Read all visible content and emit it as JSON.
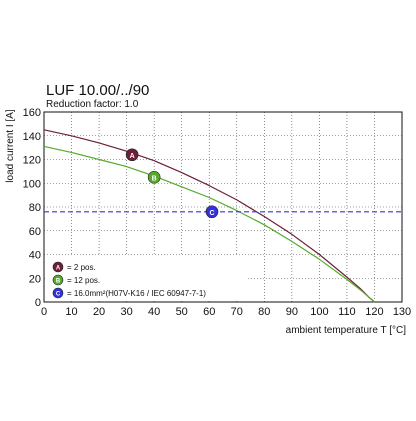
{
  "chart_data": {
    "type": "line",
    "title": "LUF 10.00/../90",
    "subtitle": "Reduction factor: 1.0",
    "xlabel": "ambient temperature T [°C]",
    "ylabel": "load current I [A]",
    "xlim": [
      0,
      130
    ],
    "ylim": [
      0,
      160
    ],
    "xticks": [
      "0",
      "10",
      "20",
      "30",
      "40",
      "50",
      "60",
      "70",
      "80",
      "90",
      "100",
      "110",
      "120",
      "130"
    ],
    "yticks": [
      "0",
      "20",
      "40",
      "60",
      "80",
      "100",
      "120",
      "140",
      "160"
    ],
    "grid": true,
    "series": [
      {
        "marker_label": "A",
        "legend": "= 2 pos.",
        "color": "#6b1f3a",
        "x": [
          0,
          10,
          20,
          30,
          40,
          50,
          60,
          70,
          80,
          90,
          100,
          110,
          115,
          118,
          120
        ],
        "y": [
          145,
          140,
          134,
          127,
          119,
          109,
          98,
          86,
          72,
          57,
          40,
          21,
          11,
          4,
          0
        ],
        "marker": {
          "x": 32,
          "y": 124
        }
      },
      {
        "marker_label": "B",
        "legend": "= 12 pos.",
        "color": "#55aa2a",
        "x": [
          0,
          10,
          20,
          30,
          40,
          50,
          60,
          70,
          80,
          90,
          100,
          110,
          115,
          118,
          120
        ],
        "y": [
          131,
          126,
          120,
          114,
          106,
          97,
          88,
          77,
          65,
          51,
          36,
          19,
          10,
          4,
          0
        ],
        "marker": {
          "x": 40,
          "y": 105
        }
      },
      {
        "marker_label": "C",
        "legend": "= 16.0mm²(H07V-K16 / IEC 60947-7-1)",
        "color": "#3333dd",
        "dashed": true,
        "x": [
          0,
          130
        ],
        "y": [
          76,
          76
        ],
        "marker": {
          "x": 61,
          "y": 76
        }
      }
    ]
  }
}
